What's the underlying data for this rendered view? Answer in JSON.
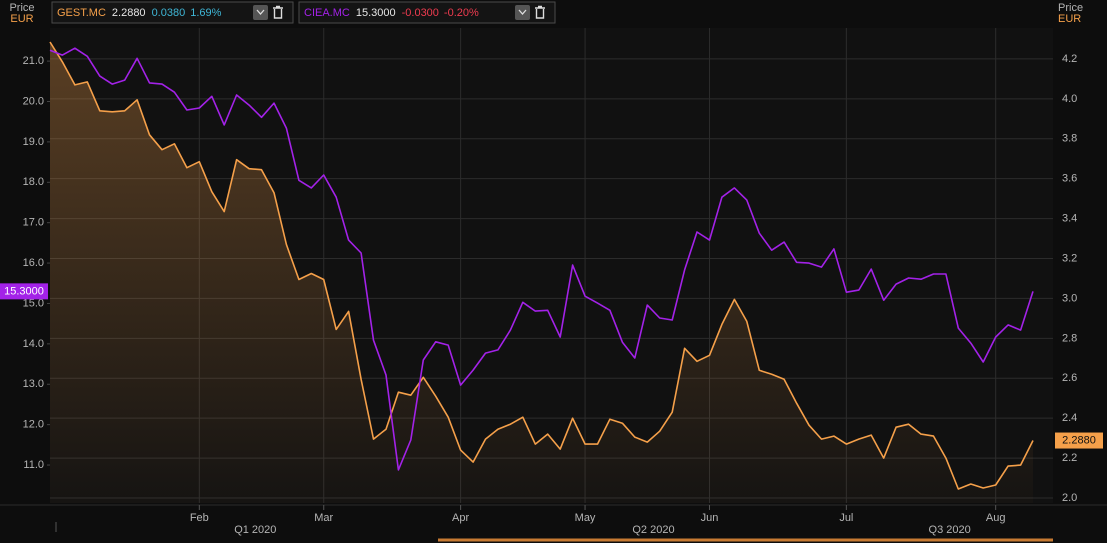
{
  "chart_data": {
    "type": "line",
    "y_axis_title": "Price",
    "y_axis_unit": "EUR",
    "y2_axis_title": "Price",
    "y2_axis_unit": "EUR",
    "categories": [
      null,
      null,
      null,
      null,
      null,
      null,
      null,
      null,
      null,
      null,
      null,
      null,
      "Feb",
      null,
      null,
      null,
      null,
      null,
      null,
      null,
      null,
      null,
      "Mar",
      null,
      null,
      null,
      null,
      null,
      null,
      null,
      null,
      null,
      null,
      "Apr",
      null,
      null,
      null,
      null,
      null,
      null,
      null,
      null,
      null,
      "May",
      null,
      null,
      null,
      null,
      null,
      null,
      null,
      null,
      null,
      "Jun",
      null,
      null,
      null,
      null,
      null,
      null,
      null,
      null,
      null,
      null,
      "Jul",
      null,
      null,
      null,
      null,
      null,
      null,
      null,
      null,
      null,
      null,
      null,
      "Aug",
      null,
      null,
      null
    ],
    "quarters": [
      "Q1 2020",
      "Q2 2020",
      "Q3 2020"
    ],
    "series": [
      {
        "name": "GEST.MC",
        "color": "#f5a04a",
        "axis": "y2",
        "area": true,
        "last_value_label": "2.2880",
        "change": "0.0380",
        "change_pct": "1.69%",
        "change_color": "#3fb6d6",
        "values": [
          4.285,
          4.185,
          4.07,
          4.085,
          3.94,
          3.935,
          3.94,
          3.995,
          3.82,
          3.745,
          3.775,
          3.655,
          3.685,
          3.535,
          3.435,
          3.695,
          3.65,
          3.645,
          3.53,
          3.27,
          3.095,
          3.125,
          3.095,
          2.845,
          2.935,
          2.595,
          2.295,
          2.345,
          2.53,
          2.515,
          2.605,
          2.51,
          2.405,
          2.24,
          2.18,
          2.295,
          2.345,
          2.37,
          2.405,
          2.27,
          2.32,
          2.245,
          2.4,
          2.27,
          2.27,
          2.395,
          2.375,
          2.305,
          2.28,
          2.335,
          2.43,
          2.75,
          2.685,
          2.715,
          2.87,
          2.995,
          2.885,
          2.64,
          2.62,
          2.595,
          2.475,
          2.365,
          2.295,
          2.31,
          2.27,
          2.295,
          2.315,
          2.2,
          2.355,
          2.37,
          2.32,
          2.31,
          2.2,
          2.045,
          2.07,
          2.05,
          2.065,
          2.16,
          2.165,
          2.288
        ]
      },
      {
        "name": "CIEA.MC",
        "color": "#a322e8",
        "axis": "y",
        "area": false,
        "last_value_label": "15.3000",
        "change": "-0.0300",
        "change_pct": "-0.20%",
        "change_color": "#ee3b4f",
        "values": [
          21.27,
          21.15,
          21.32,
          21.12,
          20.63,
          20.43,
          20.53,
          21.07,
          20.46,
          20.43,
          20.23,
          19.79,
          19.84,
          20.13,
          19.42,
          20.16,
          19.91,
          19.61,
          19.96,
          19.34,
          18.05,
          17.86,
          18.18,
          17.63,
          16.57,
          16.25,
          14.09,
          13.23,
          10.88,
          11.62,
          13.6,
          14.05,
          13.97,
          12.98,
          13.35,
          13.77,
          13.85,
          14.34,
          15.03,
          14.81,
          14.83,
          14.17,
          15.95,
          15.18,
          15.01,
          14.83,
          14.04,
          13.65,
          14.96,
          14.64,
          14.59,
          15.83,
          16.77,
          16.57,
          17.63,
          17.86,
          17.56,
          16.74,
          16.32,
          16.52,
          16.02,
          16.0,
          15.9,
          16.35,
          15.28,
          15.33,
          15.85,
          15.08,
          15.48,
          15.63,
          15.6,
          15.73,
          15.73,
          14.39,
          14.02,
          13.55,
          14.17,
          14.47,
          14.34,
          15.3
        ]
      }
    ],
    "ylim": [
      10.06,
      21.82
    ],
    "yticks": [
      {
        "value": 11,
        "label": "11.0"
      },
      {
        "value": 12,
        "label": "12.0"
      },
      {
        "value": 13,
        "label": "13.0"
      },
      {
        "value": 14,
        "label": "14.0"
      },
      {
        "value": 15,
        "label": "15.0"
      },
      {
        "value": 16,
        "label": "16.0"
      },
      {
        "value": 17,
        "label": "17.0"
      },
      {
        "value": 18,
        "label": "18.0"
      },
      {
        "value": 19,
        "label": "19.0"
      },
      {
        "value": 20,
        "label": "20.0"
      },
      {
        "value": 21,
        "label": "21.0"
      }
    ],
    "y2lim": [
      1.975,
      4.355
    ],
    "y2ticks": [
      {
        "value": 2,
        "label": "2.0"
      },
      {
        "value": 2.2,
        "label": "2.2"
      },
      {
        "value": 2.4,
        "label": "2.4"
      },
      {
        "value": 2.6,
        "label": "2.6"
      },
      {
        "value": 2.8,
        "label": "2.8"
      },
      {
        "value": 3,
        "label": "3.0"
      },
      {
        "value": 3.2,
        "label": "3.2"
      },
      {
        "value": 3.4,
        "label": "3.4"
      },
      {
        "value": 3.6,
        "label": "3.6"
      },
      {
        "value": 3.8,
        "label": "3.8"
      },
      {
        "value": 4,
        "label": "4.0"
      },
      {
        "value": 4.2,
        "label": "4.2"
      }
    ],
    "grid": true
  }
}
